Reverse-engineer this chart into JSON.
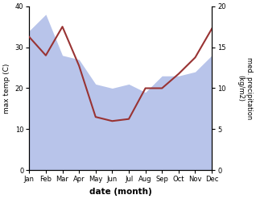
{
  "months": [
    "Jan",
    "Feb",
    "Mar",
    "Apr",
    "May",
    "Jun",
    "Jul",
    "Aug",
    "Sep",
    "Oct",
    "Nov",
    "Dec"
  ],
  "temp": [
    32.5,
    28.0,
    35.0,
    25.5,
    13.0,
    12.0,
    12.5,
    20.0,
    20.0,
    23.5,
    27.5,
    34.5
  ],
  "precip": [
    17.0,
    19.0,
    14.0,
    13.5,
    10.5,
    10.0,
    10.5,
    9.5,
    11.5,
    11.5,
    12.0,
    14.0
  ],
  "temp_color": "#993333",
  "precip_fill_color": "#b8c4ea",
  "temp_ylim": [
    0,
    40
  ],
  "precip_ylim": [
    0,
    20
  ],
  "xlabel": "date (month)",
  "ylabel_left": "max temp (C)",
  "ylabel_right": "med. precipitation\n(kg/m2)",
  "temp_lw": 1.5,
  "figsize": [
    3.18,
    2.47
  ],
  "dpi": 100
}
